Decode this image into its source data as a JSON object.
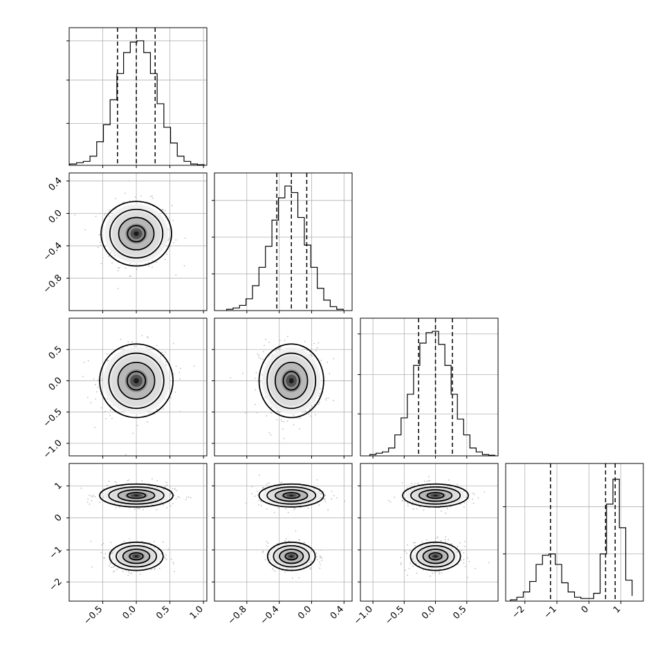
{
  "chart_data": {
    "type": "corner",
    "grid": true,
    "parameters": [
      {
        "range": [
          -1.0,
          1.05
        ],
        "ticks": [
          -0.5,
          0.0,
          0.5,
          1.0
        ],
        "tick_labels": [
          "−0.5",
          "0.0",
          "0.5",
          "1.0"
        ],
        "hist": {
          "edges": [
            -0.99,
            -0.89,
            -0.79,
            -0.69,
            -0.59,
            -0.49,
            -0.39,
            -0.29,
            -0.19,
            -0.09,
            0.01,
            0.11,
            0.21,
            0.31,
            0.41,
            0.51,
            0.61,
            0.71,
            0.81,
            0.91,
            1.01
          ],
          "counts": [
            0.01,
            0.02,
            0.03,
            0.07,
            0.18,
            0.31,
            0.5,
            0.7,
            0.86,
            0.94,
            0.95,
            0.86,
            0.7,
            0.47,
            0.29,
            0.17,
            0.07,
            0.03,
            0.01,
            0.005
          ],
          "ymax": 1.0,
          "ticks": [
            0.32,
            0.65,
            0.95
          ]
        },
        "quantiles": [
          -0.28,
          0.0,
          0.28
        ]
      },
      {
        "range": [
          -1.2,
          0.5
        ],
        "ticks": [
          -0.8,
          -0.4,
          0.0,
          0.4
        ],
        "tick_labels": [
          "−0.8",
          "−0.4",
          "0.0",
          "0.4"
        ],
        "hist": {
          "edges": [
            -1.05,
            -0.97,
            -0.89,
            -0.81,
            -0.73,
            -0.65,
            -0.57,
            -0.49,
            -0.41,
            -0.33,
            -0.25,
            -0.17,
            -0.09,
            -0.01,
            0.07,
            0.15,
            0.23,
            0.31,
            0.39
          ],
          "counts": [
            0.01,
            0.02,
            0.04,
            0.09,
            0.19,
            0.33,
            0.49,
            0.69,
            0.86,
            0.95,
            0.9,
            0.71,
            0.5,
            0.33,
            0.17,
            0.08,
            0.03,
            0.01
          ],
          "ymax": 1.0,
          "ticks": [
            0.28,
            0.56,
            0.84
          ]
        },
        "quantiles": [
          -0.43,
          -0.25,
          -0.06
        ]
      },
      {
        "range": [
          -1.2,
          1.0
        ],
        "ticks": [
          -1.0,
          -0.5,
          0.0,
          0.5
        ],
        "tick_labels": [
          "−1.0",
          "−0.5",
          "0.0",
          "0.5"
        ],
        "hist": {
          "edges": [
            -1.05,
            -0.95,
            -0.85,
            -0.75,
            -0.65,
            -0.55,
            -0.45,
            -0.35,
            -0.25,
            -0.15,
            -0.05,
            0.05,
            0.15,
            0.25,
            0.35,
            0.45,
            0.55,
            0.65,
            0.75,
            0.85,
            0.95
          ],
          "counts": [
            0.01,
            0.02,
            0.03,
            0.06,
            0.16,
            0.29,
            0.47,
            0.69,
            0.86,
            0.94,
            0.95,
            0.85,
            0.69,
            0.47,
            0.28,
            0.16,
            0.06,
            0.03,
            0.01,
            0.005
          ],
          "ymax": 1.0,
          "ticks": [
            0.32,
            0.62,
            0.93
          ]
        },
        "quantiles": [
          -0.27,
          0.0,
          0.27
        ]
      },
      {
        "range": [
          -2.6,
          1.7
        ],
        "ticks": [
          -2,
          -1,
          0,
          1
        ],
        "tick_labels": [
          "−2",
          "−1",
          "0",
          "1"
        ],
        "hist": {
          "edges": [
            -2.45,
            -2.25,
            -2.05,
            -1.85,
            -1.65,
            -1.45,
            -1.25,
            -1.05,
            -0.85,
            -0.65,
            -0.45,
            -0.25,
            -0.05,
            0.15,
            0.35,
            0.55,
            0.75,
            0.95,
            1.15,
            1.35
          ],
          "counts": [
            0.01,
            0.03,
            0.07,
            0.15,
            0.28,
            0.35,
            0.36,
            0.28,
            0.14,
            0.07,
            0.03,
            0.02,
            0.02,
            0.06,
            0.36,
            0.74,
            0.93,
            0.56,
            0.16,
            0.04
          ],
          "ymax": 1.0,
          "ticks": [
            0.36,
            0.72
          ]
        },
        "quantiles": [
          -1.2,
          0.52,
          0.82
        ]
      }
    ],
    "blobs": {
      "1-0": [
        {
          "cx": 0.0,
          "cy": -0.25,
          "sx": 0.25,
          "sy": 0.19
        }
      ],
      "2-0": [
        {
          "cx": 0.0,
          "cy": 0.0,
          "sx": 0.26,
          "sy": 0.28
        }
      ],
      "2-1": [
        {
          "cx": -0.25,
          "cy": 0.0,
          "sx": 0.19,
          "sy": 0.28
        }
      ],
      "3-0": [
        {
          "cx": 0.0,
          "cy": 0.7,
          "sx": 0.26,
          "sy": 0.17
        },
        {
          "cx": 0.0,
          "cy": -1.2,
          "sx": 0.19,
          "sy": 0.21
        }
      ],
      "3-1": [
        {
          "cx": -0.25,
          "cy": 0.7,
          "sx": 0.19,
          "sy": 0.17
        },
        {
          "cx": -0.25,
          "cy": -1.2,
          "sx": 0.14,
          "sy": 0.21
        }
      ],
      "3-2": [
        {
          "cx": 0.0,
          "cy": 0.7,
          "sx": 0.25,
          "sy": 0.17
        },
        {
          "cx": 0.0,
          "cy": -1.2,
          "sx": 0.19,
          "sy": 0.21
        }
      ]
    },
    "contour_levels_sigma": [
      0.5,
      1.0,
      1.5,
      2.0
    ]
  }
}
